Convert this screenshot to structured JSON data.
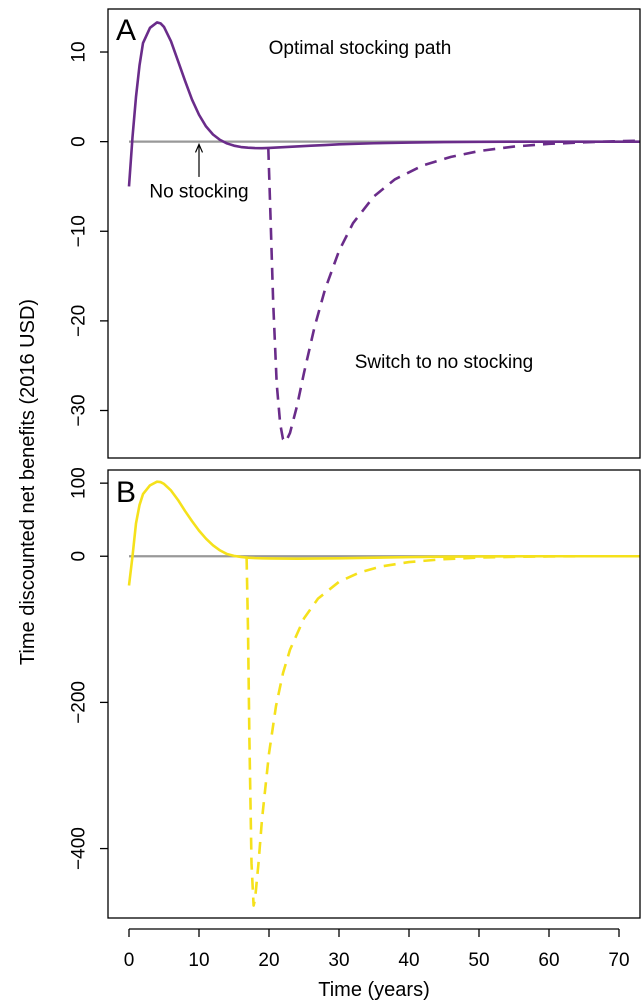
{
  "figure": {
    "ylabel": "Time discounted net benefits (2016 USD)",
    "xlabel": "Time (years)"
  },
  "chart_data": [
    {
      "type": "line",
      "panel_letter": "A",
      "xlim": [
        -3,
        73
      ],
      "ylim": [
        -35.3,
        14.8
      ],
      "yticks": [
        10,
        0,
        -10,
        -20,
        -30
      ],
      "ytick_labels": [
        "10",
        "0",
        "−10",
        "−20",
        "−30"
      ],
      "colors": {
        "optimal": "#6a2c8a",
        "baseline": "#999999"
      },
      "annotations": [
        {
          "text": "Optimal stocking path",
          "x": 33,
          "y": 10.5
        },
        {
          "text": "No stocking",
          "x": 10,
          "y": -5.5,
          "arrow_to": [
            10,
            -0.2
          ]
        },
        {
          "text": "Switch to no stocking",
          "x": 45,
          "y": -24.5
        }
      ],
      "series": [
        {
          "key": "optimal",
          "style": "solid",
          "x": [
            0,
            0.5,
            1,
            1.5,
            2,
            3,
            4,
            4.5,
            5,
            6,
            7,
            8,
            9,
            10,
            11,
            12,
            13,
            14,
            15,
            16,
            17,
            18,
            19,
            20,
            22,
            24,
            26,
            28,
            30,
            35,
            40,
            45,
            50,
            55,
            60,
            65,
            70,
            73
          ],
          "y": [
            -5,
            0.5,
            5,
            8.5,
            11,
            12.7,
            13.3,
            13.2,
            12.8,
            11.2,
            9,
            6.8,
            4.7,
            3,
            1.7,
            0.8,
            0.2,
            -0.2,
            -0.45,
            -0.6,
            -0.68,
            -0.72,
            -0.73,
            -0.7,
            -0.62,
            -0.53,
            -0.45,
            -0.38,
            -0.3,
            -0.18,
            -0.1,
            -0.05,
            -0.02,
            0,
            0,
            0,
            0,
            0
          ]
        },
        {
          "key": "optimal",
          "style": "dashed",
          "x": [
            19.9,
            20.2,
            20.6,
            21.1,
            21.6,
            22.0,
            22.4,
            23.0,
            24.0,
            25.0,
            26.5,
            28.0,
            30.0,
            32.0,
            35.0,
            38.0,
            42.0,
            46.0,
            50.0,
            55.0,
            60.0,
            65.0,
            70.0,
            73.0
          ],
          "y": [
            -0.7,
            -8,
            -18,
            -27,
            -31.5,
            -33.2,
            -33.5,
            -32.5,
            -29.5,
            -25.8,
            -20.7,
            -16.5,
            -12.2,
            -9.1,
            -6.1,
            -4.2,
            -2.65,
            -1.7,
            -1.05,
            -0.55,
            -0.25,
            -0.08,
            0.05,
            0.1
          ]
        },
        {
          "key": "baseline",
          "style": "solid",
          "x": [
            0,
            73
          ],
          "y": [
            0,
            0
          ]
        }
      ]
    },
    {
      "type": "line",
      "panel_letter": "B",
      "xlim": [
        -3,
        73
      ],
      "ylim": [
        -495,
        118
      ],
      "yticks": [
        100,
        0,
        -200,
        -400
      ],
      "ytick_labels": [
        "100",
        "0",
        "−200",
        "−400"
      ],
      "colors": {
        "optimal": "#f5e11b",
        "baseline": "#999999"
      },
      "series": [
        {
          "key": "optimal",
          "style": "solid",
          "x": [
            0,
            0.5,
            1,
            1.5,
            2,
            3,
            4,
            4.5,
            5,
            6,
            7,
            8,
            9,
            10,
            11,
            12,
            13,
            14,
            15,
            16,
            17,
            18,
            19,
            20,
            22,
            24,
            26,
            28,
            30,
            35,
            40,
            45,
            50,
            55,
            60,
            65,
            70,
            73
          ],
          "y": [
            -40,
            0,
            45,
            70,
            85,
            97,
            102,
            101.5,
            99,
            90,
            77,
            62,
            48,
            35,
            24,
            15,
            8,
            3,
            0.5,
            -1,
            -2,
            -2.5,
            -2.8,
            -3,
            -3.2,
            -3.3,
            -3.2,
            -3,
            -2.8,
            -2,
            -1.2,
            -0.6,
            -0.3,
            -0.1,
            0,
            0,
            0,
            0
          ]
        },
        {
          "key": "optimal",
          "style": "dashed",
          "x": [
            16.8,
            17.0,
            17.2,
            17.5,
            17.8,
            18.0,
            18.5,
            19.0,
            20.0,
            21.0,
            22.0,
            23.0,
            25.0,
            27.0,
            30.0,
            33.0,
            36.0,
            40.0,
            45.0,
            50.0,
            55.0,
            60.0,
            65.0,
            70.0,
            73.0
          ],
          "y": [
            -2,
            -100,
            -250,
            -420,
            -478,
            -470,
            -420,
            -360,
            -270,
            -205,
            -160,
            -128,
            -85,
            -58,
            -35,
            -22,
            -14,
            -8,
            -4,
            -1.8,
            -0.8,
            -0.3,
            0,
            0,
            0
          ]
        },
        {
          "key": "baseline",
          "style": "solid",
          "x": [
            0,
            73
          ],
          "y": [
            0,
            0
          ]
        }
      ]
    }
  ],
  "x_axis": {
    "ticks": [
      0,
      10,
      20,
      30,
      40,
      50,
      60,
      70
    ],
    "tick_labels": [
      "0",
      "10",
      "20",
      "30",
      "40",
      "50",
      "60",
      "70"
    ]
  }
}
